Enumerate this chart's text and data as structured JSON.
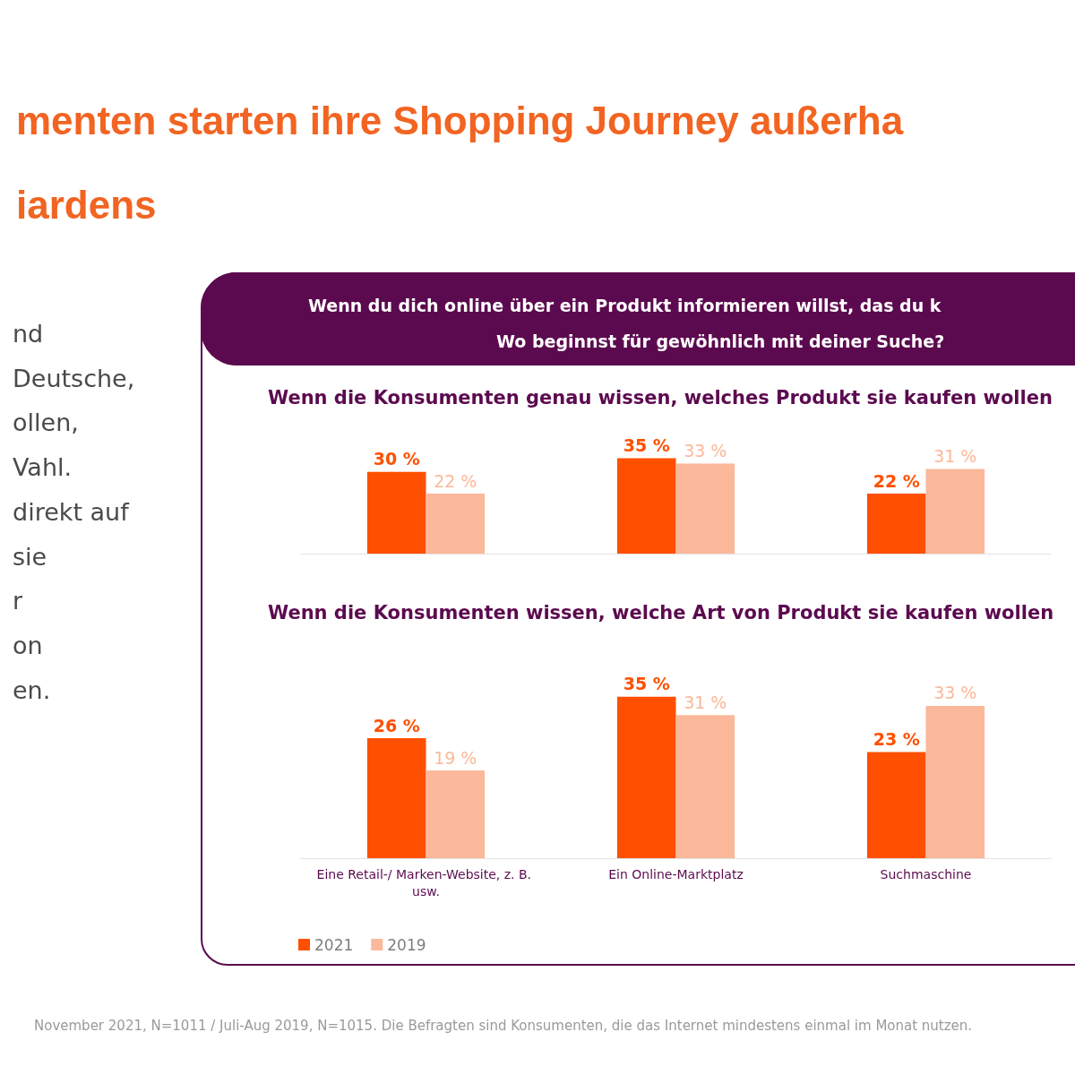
{
  "chart_data": [
    {
      "type": "bar",
      "title": "menten starten ihre Shopping Journey außerha\niardens",
      "subtitle": "Wenn die Konsumenten genau wissen, welches Produkt sie kaufen wollen",
      "categories": [
        null,
        null,
        null
      ],
      "tick_labels": false,
      "grid": false,
      "legend": false,
      "series": [
        {
          "color": "#fe5000",
          "values": [
            30,
            35,
            22
          ],
          "value_labels": [
            "30 %",
            "35 %",
            "22 %"
          ]
        },
        {
          "color": "#fbb89a",
          "values": [
            22,
            33,
            31
          ],
          "value_labels": [
            "22 %",
            "33 %",
            "31 %"
          ]
        }
      ],
      "annotations": [
        "Wenn du dich online über ein Produkt informieren willst, das du k",
        "Wo beginnst für gewöhnlich mit deiner Suche?",
        "nd",
        "Deutsche,",
        "ollen,",
        "Vahl.",
        "direkt auf",
        "sie",
        "r",
        "on",
        "en."
      ]
    },
    {
      "type": "bar",
      "title": "Wenn die Konsumenten wissen, welche Art von Produkt sie kaufen wollen",
      "categories": [
        "Eine Retail-/ Marken-Website, z. B. usw.",
        "Ein Online-Marktplatz",
        "Suchmaschine"
      ],
      "grid": false,
      "legend": "bottom left",
      "series": [
        {
          "name": "2021",
          "color": "#fe5000",
          "values": [
            26,
            35,
            23
          ],
          "value_labels": [
            "26 %",
            "35 %",
            "23 %"
          ]
        },
        {
          "name": "2019",
          "color": "#fbb89a",
          "values": [
            19,
            31,
            33
          ],
          "value_labels": [
            "19 %",
            "31 %",
            "33 %"
          ]
        }
      ],
      "annotations": [
        "November 2021, N=1011 / Juli-Aug 2019, N=1015. Die Befragten sind Konsumenten, die das Internet mindestens einmal im Monat nutzen."
      ]
    }
  ]
}
